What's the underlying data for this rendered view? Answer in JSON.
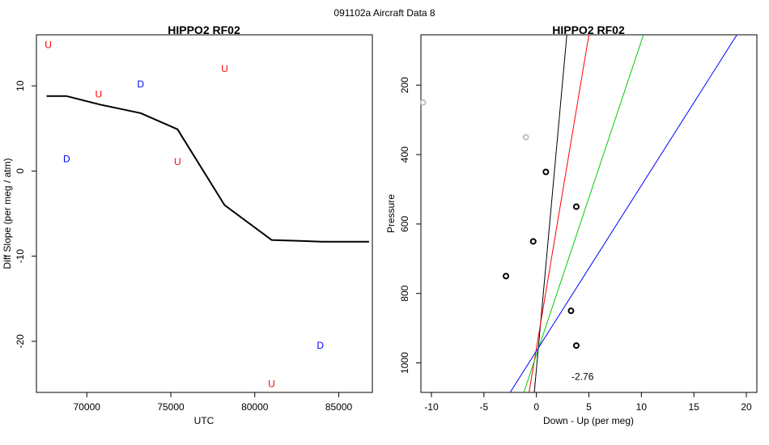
{
  "figure": {
    "title": "091102a   Aircraft Data 8"
  },
  "chart_data": [
    {
      "type": "line",
      "title": "HIPPO2 RF02",
      "xlabel": "UTC",
      "ylabel": "Diff Slope (per meg / atm)",
      "xlim": [
        67000,
        87000
      ],
      "ylim": [
        -26,
        16
      ],
      "xticks": [
        70000,
        75000,
        80000,
        85000
      ],
      "yticks": [
        -20,
        -10,
        0,
        10
      ],
      "grid": false,
      "series": [
        {
          "color": "#000000",
          "x": [
            67600,
            68800,
            70800,
            73200,
            75400,
            78200,
            81000,
            84000,
            86800
          ],
          "y": [
            8.8,
            8.8,
            7.8,
            6.8,
            4.9,
            -4.0,
            -8.1,
            -8.3,
            -8.3
          ]
        }
      ],
      "annotations": [
        {
          "text": "U",
          "x": 67700,
          "y": 14.8,
          "color": "#ff0000"
        },
        {
          "text": "D",
          "x": 68800,
          "y": 1.4,
          "color": "#0000ff"
        },
        {
          "text": "U",
          "x": 70700,
          "y": 9.0,
          "color": "#ff0000"
        },
        {
          "text": "D",
          "x": 73200,
          "y": 10.2,
          "color": "#0000ff"
        },
        {
          "text": "U",
          "x": 75400,
          "y": 1.1,
          "color": "#ff0000"
        },
        {
          "text": "U",
          "x": 78200,
          "y": 12.0,
          "color": "#ff0000"
        },
        {
          "text": "U",
          "x": 81000,
          "y": -25.0,
          "color": "#ff0000"
        },
        {
          "text": "D",
          "x": 83900,
          "y": -20.5,
          "color": "#0000ff"
        }
      ]
    },
    {
      "type": "scatter",
      "title": "HIPPO2 RF02",
      "xlabel": "Down - Up (per meg)",
      "ylabel": "Pressure",
      "xlim": [
        -11,
        21
      ],
      "ylim": [
        1085,
        55
      ],
      "y_reversed": true,
      "xticks": [
        -10,
        -5,
        0,
        5,
        10,
        15,
        20
      ],
      "yticks": [
        200,
        400,
        600,
        800,
        1000
      ],
      "grid": false,
      "points": [
        {
          "x": -10.8,
          "y": 250,
          "color": "#c0c0c0"
        },
        {
          "x": -1.0,
          "y": 350,
          "color": "#c0c0c0"
        },
        {
          "x": 0.9,
          "y": 450,
          "color": "#000000"
        },
        {
          "x": 3.8,
          "y": 550,
          "color": "#000000"
        },
        {
          "x": -0.3,
          "y": 650,
          "color": "#000000"
        },
        {
          "x": -2.9,
          "y": 750,
          "color": "#000000"
        },
        {
          "x": 3.3,
          "y": 850,
          "color": "#000000"
        },
        {
          "x": 3.8,
          "y": 950,
          "color": "#000000"
        }
      ],
      "fit_lines": [
        {
          "color": "#000000",
          "p1": [
            -0.2,
            1085
          ],
          "p2": [
            2.9,
            55
          ]
        },
        {
          "color": "#ff0000",
          "p1": [
            -0.7,
            1085
          ],
          "p2": [
            5.0,
            55
          ]
        },
        {
          "color": "#00cc00",
          "p1": [
            -1.2,
            1085
          ],
          "p2": [
            10.2,
            55
          ]
        },
        {
          "color": "#0000ff",
          "p1": [
            -2.5,
            1085
          ],
          "p2": [
            19.1,
            55
          ]
        }
      ],
      "annotations": [
        {
          "text": "-2.76",
          "x": 4.4,
          "y": 1040,
          "color": "#000000"
        }
      ]
    }
  ]
}
